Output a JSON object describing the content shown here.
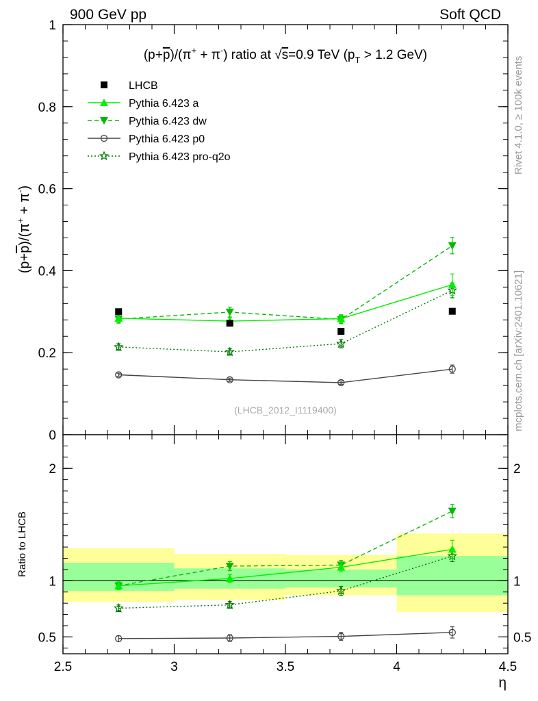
{
  "header": {
    "left": "900 GeV pp",
    "right": "Soft QCD"
  },
  "side": {
    "rivet": "Rivet 4.1.0, ≥ 100k events",
    "mcplots": "mcplots.cern.ch [arXiv:2401.10621]"
  },
  "colors": {
    "data": "#000000",
    "a": "#00ee00",
    "dw": "#00bb00",
    "p0": "#444444",
    "pro": "#007700",
    "band_yellow": "#ffff99",
    "band_green": "#99ff99"
  },
  "chart_data": [
    {
      "type": "line",
      "title": "(p+p̄)/(π⁺ + π⁻) ratio at √s=0.9 TeV (pT > 1.2 GeV)",
      "title_parts": {
        "p1": "(p+",
        "pbar": "p",
        "p2": ")/(π",
        "sup1": "+",
        "p3": " + π",
        "sup2": "-",
        "p4": ") ratio at ",
        "sqrt": "√",
        "s": "s",
        "p5": "=0.9 TeV (p",
        "sub": "T",
        "p6": " > 1.2 GeV)"
      },
      "ylabel": "(p+p̄)/(π⁺ + π⁻)",
      "ylabel_parts": {
        "p1": "(p+",
        "pbar": "p",
        "p2": ")/(π",
        "sup1": "+",
        "p3": " + π",
        "sup2": "-",
        "p4": ")"
      },
      "analysis": "(LHCB_2012_I1119400)",
      "xlim": [
        2.5,
        4.5
      ],
      "ylim": [
        0,
        1
      ],
      "yticks": [
        0,
        0.2,
        0.4,
        0.6,
        0.8,
        1
      ],
      "ytick_labels": [
        "0",
        "0.2",
        "0.4",
        "0.6",
        "0.8",
        "1"
      ],
      "x": [
        2.75,
        3.25,
        3.75,
        4.25
      ],
      "series": [
        {
          "key": "data",
          "name": "LHCB",
          "values": [
            0.3,
            0.272,
            0.252,
            0.301
          ],
          "errors": [
            0,
            0,
            0,
            0
          ]
        },
        {
          "key": "a",
          "name": "Pythia 6.423 a",
          "values": [
            0.284,
            0.277,
            0.283,
            0.366
          ],
          "errors": [
            0.01,
            0.008,
            0.01,
            0.026
          ]
        },
        {
          "key": "dw",
          "name": "Pythia 6.423 dw",
          "values": [
            0.282,
            0.299,
            0.281,
            0.461
          ],
          "errors": [
            0.01,
            0.012,
            0.01,
            0.02
          ]
        },
        {
          "key": "p0",
          "name": "Pythia 6.423 p0",
          "values": [
            0.146,
            0.134,
            0.127,
            0.16
          ],
          "errors": [
            0.004,
            0.004,
            0.004,
            0.01
          ]
        },
        {
          "key": "pro",
          "name": "Pythia 6.423 pro-q2o",
          "values": [
            0.214,
            0.202,
            0.222,
            0.352
          ],
          "errors": [
            0.008,
            0.008,
            0.01,
            0.018
          ]
        }
      ]
    },
    {
      "type": "line",
      "ylabel": "Ratio to LHCB",
      "xlabel": "η",
      "xlim": [
        2.5,
        4.5
      ],
      "ylim": [
        0.35,
        2.3
      ],
      "yticks": [
        0.5,
        1,
        2
      ],
      "ytick_labels": [
        "0.5",
        "1",
        "2"
      ],
      "xticks": [
        2.5,
        3,
        3.5,
        4,
        4.5
      ],
      "xtick_labels": [
        "2.5",
        "3",
        "3.5",
        "4",
        "4.5"
      ],
      "bins": [
        [
          2.5,
          3.0
        ],
        [
          3.0,
          3.5
        ],
        [
          3.5,
          4.0
        ],
        [
          4.0,
          4.5
        ]
      ],
      "band_yellow": [
        [
          0.81,
          1.29
        ],
        [
          0.83,
          1.24
        ],
        [
          0.87,
          1.23
        ],
        [
          0.72,
          1.42
        ]
      ],
      "band_green": [
        [
          0.91,
          1.16
        ],
        [
          0.93,
          1.11
        ],
        [
          0.94,
          1.1
        ],
        [
          0.87,
          1.22
        ]
      ],
      "x": [
        2.75,
        3.25,
        3.75,
        4.25
      ],
      "series": [
        {
          "key": "a",
          "values": [
            0.955,
            1.02,
            1.12,
            1.28
          ],
          "errors": [
            0.035,
            0.035,
            0.04,
            0.08
          ]
        },
        {
          "key": "dw",
          "values": [
            0.955,
            1.13,
            1.14,
            1.62
          ],
          "errors": [
            0.035,
            0.04,
            0.04,
            0.06
          ]
        },
        {
          "key": "p0",
          "values": [
            0.485,
            0.49,
            0.505,
            0.54
          ],
          "errors": [
            0.025,
            0.03,
            0.035,
            0.05
          ]
        },
        {
          "key": "pro",
          "values": [
            0.755,
            0.785,
            0.91,
            1.22
          ],
          "errors": [
            0.03,
            0.03,
            0.04,
            0.05
          ]
        }
      ]
    }
  ]
}
